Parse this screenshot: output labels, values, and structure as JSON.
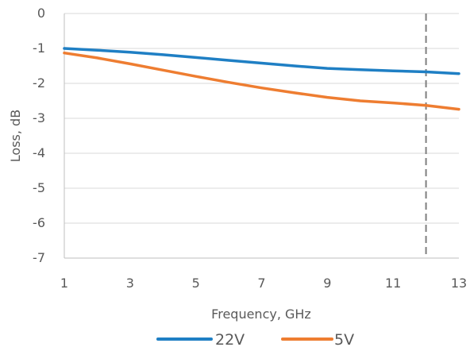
{
  "chart_data": {
    "type": "line",
    "title": "",
    "xlabel": "Frequency, GHz",
    "ylabel": "Loss, dB",
    "xlim": [
      1,
      13
    ],
    "ylim": [
      -7,
      0
    ],
    "xticks": [
      "1",
      "3",
      "5",
      "7",
      "9",
      "11",
      "13"
    ],
    "yticks": [
      "0",
      "-1",
      "-2",
      "-3",
      "-4",
      "-5",
      "-6",
      "-7"
    ],
    "grid": "horizontal",
    "reference_line_x": 12,
    "legend_position": "bottom",
    "series": [
      {
        "name": "22V",
        "color": "#1f7fc4",
        "x": [
          1,
          2,
          3,
          4,
          5,
          6,
          7,
          8,
          9,
          10,
          11,
          12,
          13
        ],
        "y": [
          -1.0,
          -1.05,
          -1.11,
          -1.18,
          -1.26,
          -1.34,
          -1.42,
          -1.5,
          -1.57,
          -1.61,
          -1.64,
          -1.67,
          -1.72
        ]
      },
      {
        "name": "5V",
        "color": "#ee7d31",
        "x": [
          1,
          2,
          3,
          4,
          5,
          6,
          7,
          8,
          9,
          10,
          11,
          12,
          13
        ],
        "y": [
          -1.13,
          -1.27,
          -1.44,
          -1.62,
          -1.8,
          -1.97,
          -2.13,
          -2.27,
          -2.4,
          -2.5,
          -2.56,
          -2.63,
          -2.74
        ]
      }
    ]
  }
}
